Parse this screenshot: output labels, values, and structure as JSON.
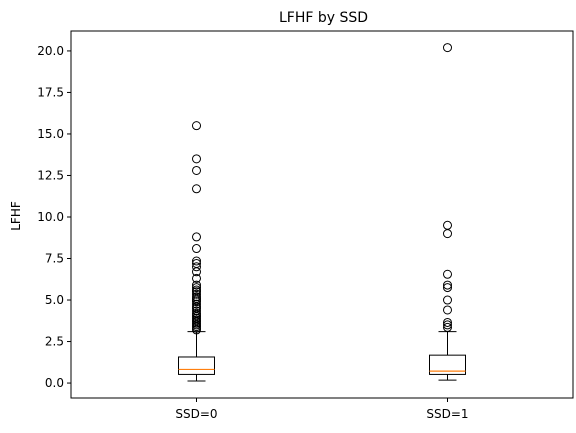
{
  "chart_data": {
    "type": "box",
    "title": "LFHF by SSD",
    "xlabel": "",
    "ylabel": "LFHF",
    "ylim": [
      -0.9,
      21.2
    ],
    "yticks": [
      0.0,
      2.5,
      5.0,
      7.5,
      10.0,
      12.5,
      15.0,
      17.5,
      20.0
    ],
    "ytick_labels": [
      "0.0",
      "2.5",
      "5.0",
      "7.5",
      "10.0",
      "12.5",
      "15.0",
      "17.5",
      "20.0"
    ],
    "categories": [
      "SSD=0",
      "SSD=1"
    ],
    "grid": false,
    "colors": {
      "box": "#000000",
      "median": "#ff7f0e",
      "flier": "#000000"
    },
    "boxes": [
      {
        "label": "SSD=0",
        "whisker_low": 0.12,
        "q1": 0.52,
        "median": 0.82,
        "q3": 1.57,
        "whisker_high": 3.1,
        "fliers": [
          3.2,
          3.3,
          3.4,
          3.5,
          3.6,
          3.7,
          3.8,
          3.9,
          4.0,
          4.1,
          4.2,
          4.35,
          4.5,
          4.6,
          4.75,
          4.9,
          5.0,
          5.1,
          5.2,
          5.35,
          5.5,
          5.6,
          5.75,
          5.9,
          6.3,
          6.7,
          7.0,
          7.2,
          7.35,
          8.1,
          8.8,
          11.7,
          12.8,
          13.5,
          15.5
        ]
      },
      {
        "label": "SSD=1",
        "whisker_low": 0.18,
        "q1": 0.52,
        "median": 0.72,
        "q3": 1.68,
        "whisker_high": 3.1,
        "fliers": [
          3.35,
          3.5,
          3.65,
          4.4,
          5.0,
          5.75,
          5.9,
          6.55,
          9.0,
          9.5,
          20.2
        ]
      }
    ]
  }
}
